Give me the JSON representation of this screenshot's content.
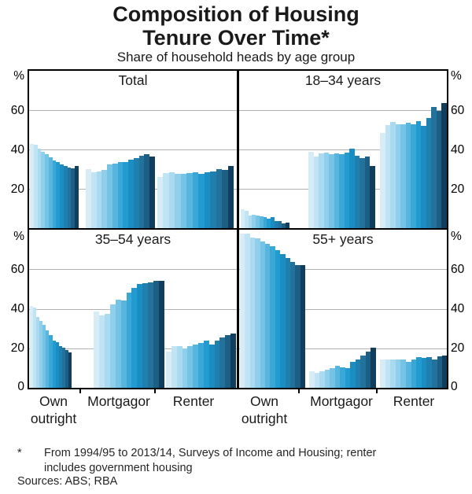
{
  "header": {
    "title_line1": "Composition of Housing",
    "title_line2": "Tenure Over Time*",
    "subtitle": "Share of household heads by age group"
  },
  "y_axis": {
    "unit": "%",
    "top_ticks": [
      "60",
      "40",
      "20"
    ],
    "bottom_ticks": [
      "60",
      "40",
      "20",
      "0"
    ]
  },
  "x_labels": {
    "own_line1": "Own",
    "own_line2": "outright",
    "mortgagor": "Mortgagor",
    "renter": "Renter"
  },
  "footnote": {
    "marker": "*",
    "line1": "From 1994/95 to 2013/14, Surveys of Income and Housing; renter",
    "line2": "includes government housing"
  },
  "sources": "Sources: ABS; RBA",
  "colors": {
    "grid": "#b3b3b3",
    "axis": "#000000",
    "lightest_bar": "#d6edf8",
    "darkest_bar": "#113e5c"
  },
  "chart_data": {
    "type": "bar",
    "title": "Composition of Housing Tenure Over Time*",
    "subtitle": "Share of household heads by age group",
    "unit": "%",
    "y_range": [
      0,
      80
    ],
    "y_gridlines": [
      20,
      40,
      60
    ],
    "grid": true,
    "legend": "none",
    "categories": [
      "Own outright",
      "Mortgagor",
      "Renter"
    ],
    "bars_per_group": 13,
    "bar_order_note": "bars run chronologically, lightest = 1994/95 survey, darkest = 2013/14 survey",
    "bar_colors": [
      "#d6edf8",
      "#c0e4f4",
      "#a9daf0",
      "#90cfeb",
      "#75c3e5",
      "#58b6de",
      "#3aa8d7",
      "#219bd0",
      "#1a8dc3",
      "#1f80b0",
      "#22729b",
      "#1c5e84",
      "#113e5c"
    ],
    "panels": [
      {
        "title": "Total",
        "series": [
          {
            "name": "Own outright",
            "values": [
              43,
              42.5,
              40.5,
              39,
              37.5,
              36,
              34.5,
              33.5,
              32.5,
              31.5,
              31,
              30.5,
              31.5
            ]
          },
          {
            "name": "Mortgagor",
            "values": [
              30,
              28.5,
              29,
              29.5,
              32.5,
              33,
              33.5,
              33.5,
              35,
              35.5,
              37,
              37.5,
              36.5
            ]
          },
          {
            "name": "Renter",
            "values": [
              26,
              28,
              28.5,
              27.5,
              27.5,
              28,
              28.5,
              27.5,
              28.5,
              29,
              30,
              29.5,
              31.5
            ]
          }
        ]
      },
      {
        "title": "18–34 years",
        "series": [
          {
            "name": "Own outright",
            "values": [
              9.5,
              9,
              6.5,
              7,
              6.5,
              6,
              5.5,
              5,
              5.5,
              3.5,
              3.5,
              2.5,
              3
            ]
          },
          {
            "name": "Mortgagor",
            "values": [
              39,
              36.5,
              38,
              38.5,
              37.5,
              38,
              37.5,
              38.5,
              40.5,
              37,
              35.5,
              36.5,
              31.5
            ]
          },
          {
            "name": "Renter",
            "values": [
              48.5,
              52.5,
              54,
              53,
              53,
              53.5,
              53,
              54.5,
              52,
              56,
              61.5,
              59.5,
              63.5
            ]
          }
        ]
      },
      {
        "title": "35–54 years",
        "series": [
          {
            "name": "Own outright",
            "values": [
              41.5,
              40.5,
              36,
              34,
              32,
              29,
              26.5,
              24,
              23,
              21,
              20.5,
              19,
              18
            ]
          },
          {
            "name": "Mortgagor",
            "values": [
              38.5,
              36.5,
              37.5,
              42,
              44.5,
              44,
              48,
              50.5,
              52.5,
              53,
              53.5,
              54,
              54
            ]
          },
          {
            "name": "Renter",
            "values": [
              18.5,
              21,
              21,
              20,
              21,
              22,
              22.5,
              24,
              22,
              24,
              25.5,
              26.5,
              27.5
            ]
          }
        ]
      },
      {
        "title": "55+ years",
        "series": [
          {
            "name": "Own outright",
            "values": [
              78,
              78,
              76,
              75.5,
              74,
              73,
              71.5,
              69.5,
              67.5,
              65.5,
              63.5,
              62,
              62
            ]
          },
          {
            "name": "Mortgagor",
            "values": [
              8.5,
              7.5,
              8.5,
              9,
              10,
              11,
              10.5,
              10,
              13,
              14.5,
              16.5,
              18.5,
              20.5
            ]
          },
          {
            "name": "Renter",
            "values": [
              14.5,
              14.5,
              14.5,
              14.5,
              14.5,
              13,
              14.5,
              15.5,
              15,
              15.5,
              14.5,
              16,
              16.5
            ]
          }
        ]
      }
    ]
  }
}
